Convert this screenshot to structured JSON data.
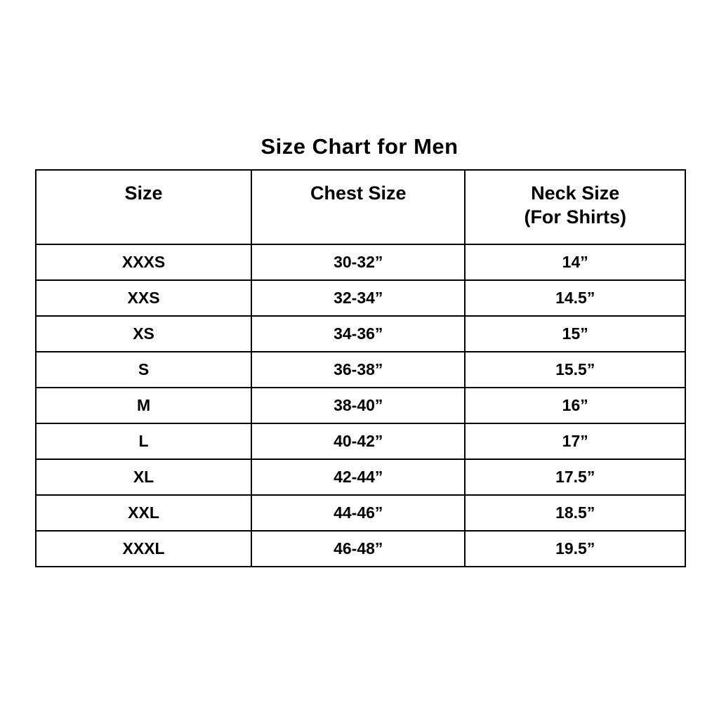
{
  "page_title": "Size Chart for Men",
  "table": {
    "headers": {
      "size": "Size",
      "chest": "Chest Size",
      "neck_line1": "Neck Size",
      "neck_line2": "(For Shirts)"
    },
    "rows": [
      {
        "size": "XXXS",
        "chest": "30-32”",
        "neck": "14”"
      },
      {
        "size": "XXS",
        "chest": "32-34”",
        "neck": "14.5”"
      },
      {
        "size": "XS",
        "chest": "34-36”",
        "neck": "15”"
      },
      {
        "size": "S",
        "chest": "36-38”",
        "neck": "15.5”"
      },
      {
        "size": "M",
        "chest": "38-40”",
        "neck": "16”"
      },
      {
        "size": "L",
        "chest": "40-42”",
        "neck": "17”"
      },
      {
        "size": "XL",
        "chest": "42-44”",
        "neck": "17.5”"
      },
      {
        "size": "XXL",
        "chest": "44-46”",
        "neck": "18.5”"
      },
      {
        "size": "XXXL",
        "chest": "46-48”",
        "neck": "19.5”"
      }
    ]
  },
  "chart_data": {
    "type": "table",
    "title": "Size Chart for Men",
    "columns": [
      "Size",
      "Chest Size",
      "Neck Size (For Shirts)"
    ],
    "rows": [
      [
        "XXXS",
        "30-32”",
        "14”"
      ],
      [
        "XXS",
        "32-34”",
        "14.5”"
      ],
      [
        "XS",
        "34-36”",
        "15”"
      ],
      [
        "S",
        "36-38”",
        "15.5”"
      ],
      [
        "M",
        "38-40”",
        "16”"
      ],
      [
        "L",
        "40-42”",
        "17”"
      ],
      [
        "XL",
        "42-44”",
        "17.5”"
      ],
      [
        "XXL",
        "44-46”",
        "18.5”"
      ],
      [
        "XXXL",
        "46-48”",
        "19.5”"
      ]
    ],
    "layout": {
      "background": "#ffffff",
      "text_color": "#000000",
      "border_color": "#000000",
      "grid": true
    }
  }
}
